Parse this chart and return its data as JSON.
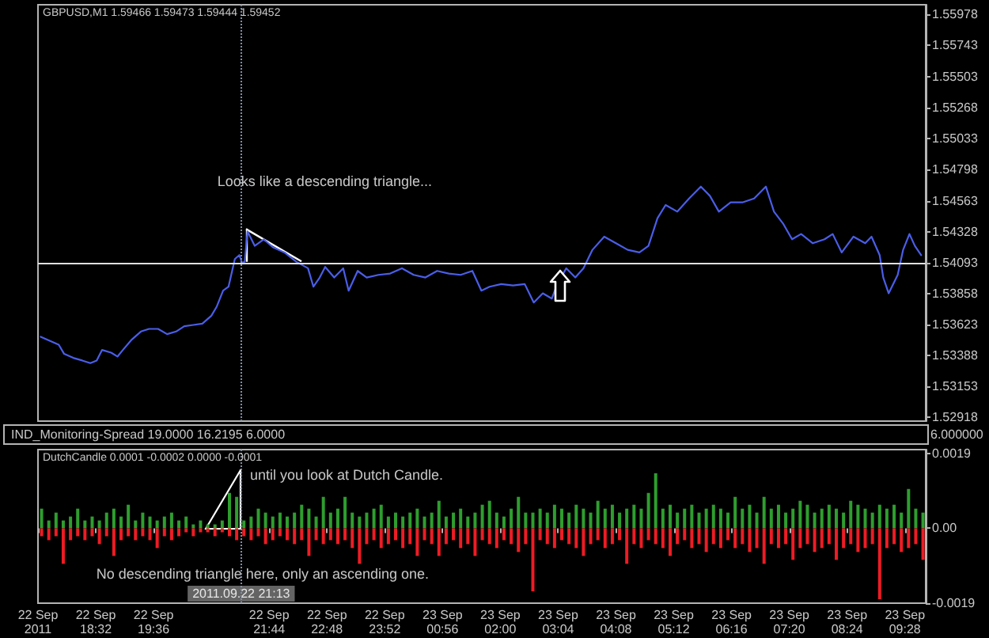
{
  "chart_data": [
    {
      "type": "line",
      "title": "GBPUSD,M1 1.59466 1.59473 1.59444 1.59452",
      "x": [
        "2011-09-22T17:31",
        "2011-09-22T17:41",
        "2011-09-22T17:51",
        "2011-09-22T17:57",
        "2011-09-22T18:07",
        "2011-09-22T18:17",
        "2011-09-22T18:26",
        "2011-09-22T18:33",
        "2011-09-22T18:39",
        "2011-09-22T18:49",
        "2011-09-22T18:56",
        "2011-09-22T19:02",
        "2011-09-22T19:12",
        "2011-09-22T19:22",
        "2011-09-22T19:31",
        "2011-09-22T19:41",
        "2011-09-22T19:51",
        "2011-09-22T20:01",
        "2011-09-22T20:10",
        "2011-09-22T20:20",
        "2011-09-22T20:30",
        "2011-09-22T20:40",
        "2011-09-22T20:46",
        "2011-09-22T20:53",
        "2011-09-22T20:59",
        "2011-09-22T21:06",
        "2011-09-22T21:11",
        "2011-09-22T21:14",
        "2011-09-22T21:17",
        "2011-09-22T21:20",
        "2011-09-22T21:28",
        "2011-09-22T21:38",
        "2011-09-22T21:48",
        "2011-09-22T22:01",
        "2011-09-22T22:14",
        "2011-09-22T22:27",
        "2011-09-22T22:33",
        "2011-09-22T22:40",
        "2011-09-22T22:46",
        "2011-09-22T22:56",
        "2011-09-22T23:06",
        "2011-09-22T23:12",
        "2011-09-22T23:22",
        "2011-09-22T23:32",
        "2011-09-22T23:45",
        "2011-09-22T23:58",
        "2011-09-23T00:11",
        "2011-09-23T00:24",
        "2011-09-23T00:37",
        "2011-09-23T00:50",
        "2011-09-23T01:03",
        "2011-09-23T01:16",
        "2011-09-23T01:29",
        "2011-09-23T01:39",
        "2011-09-23T01:48",
        "2011-09-23T02:01",
        "2011-09-23T02:14",
        "2011-09-23T02:27",
        "2011-09-23T02:37",
        "2011-09-23T02:47",
        "2011-09-23T02:57",
        "2011-09-23T03:03",
        "2011-09-23T03:13",
        "2011-09-23T03:23",
        "2011-09-23T03:32",
        "2011-09-23T03:42",
        "2011-09-23T03:55",
        "2011-09-23T04:08",
        "2011-09-23T04:21",
        "2011-09-23T04:34",
        "2011-09-23T04:44",
        "2011-09-23T04:54",
        "2011-09-23T05:03",
        "2011-09-23T05:16",
        "2011-09-23T05:29",
        "2011-09-23T05:42",
        "2011-09-23T05:52",
        "2011-09-23T06:02",
        "2011-09-23T06:15",
        "2011-09-23T06:28",
        "2011-09-23T06:41",
        "2011-09-23T06:54",
        "2011-09-23T07:03",
        "2011-09-23T07:13",
        "2011-09-23T07:23",
        "2011-09-23T07:33",
        "2011-09-23T07:46",
        "2011-09-23T07:59",
        "2011-09-23T08:08",
        "2011-09-23T08:18",
        "2011-09-23T08:31",
        "2011-09-23T08:44",
        "2011-09-23T08:51",
        "2011-09-23T09:00",
        "2011-09-23T09:04",
        "2011-09-23T09:10",
        "2011-09-23T09:20",
        "2011-09-23T09:26",
        "2011-09-23T09:33",
        "2011-09-23T09:39",
        "2011-09-23T09:46"
      ],
      "values": [
        1.5353,
        1.535,
        1.5347,
        1.534,
        1.5337,
        1.5335,
        1.5333,
        1.5335,
        1.5343,
        1.5341,
        1.5338,
        1.5343,
        1.5351,
        1.5357,
        1.5359,
        1.5359,
        1.5355,
        1.5357,
        1.5361,
        1.5362,
        1.5363,
        1.5369,
        1.5376,
        1.5388,
        1.5391,
        1.5412,
        1.5415,
        1.5409,
        1.541,
        1.5433,
        1.5422,
        1.5427,
        1.5421,
        1.5417,
        1.541,
        1.5405,
        1.5391,
        1.5398,
        1.5406,
        1.5398,
        1.5405,
        1.5388,
        1.5403,
        1.5398,
        1.54,
        1.5401,
        1.5405,
        1.54,
        1.5398,
        1.5403,
        1.5401,
        1.54,
        1.5403,
        1.5388,
        1.5391,
        1.5393,
        1.5392,
        1.5393,
        1.5379,
        1.5386,
        1.5382,
        1.5393,
        1.5405,
        1.5398,
        1.5405,
        1.5419,
        1.5429,
        1.5424,
        1.5419,
        1.5417,
        1.5422,
        1.5443,
        1.5453,
        1.5448,
        1.5458,
        1.5467,
        1.546,
        1.5448,
        1.5455,
        1.5455,
        1.5458,
        1.5467,
        1.5448,
        1.5439,
        1.5427,
        1.5431,
        1.5424,
        1.5427,
        1.5431,
        1.5417,
        1.5429,
        1.5424,
        1.5429,
        1.5415,
        1.5398,
        1.5386,
        1.54,
        1.5419,
        1.5431,
        1.5422,
        1.5415
      ],
      "color": "#4a5ee8",
      "xlim": [
        "2011-09-22T17:28",
        "2011-09-23T09:51"
      ],
      "ylim": [
        1.5289,
        1.5605
      ],
      "yticks": [
        1.52918,
        1.53153,
        1.53388,
        1.53623,
        1.53858,
        1.54093,
        1.54328,
        1.54563,
        1.54798,
        1.55033,
        1.55268,
        1.55503,
        1.55743,
        1.55978
      ],
      "tick_labels": "y",
      "ref_lines": [
        {
          "axis": "y",
          "value": 1.5409,
          "color": "#e0e0e0"
        },
        {
          "axis": "x",
          "value": "2011-09-22T21:13",
          "color": "#7f8fa6",
          "line_style": "dotted"
        }
      ],
      "annotations": [
        "Looks like a descending triangle..."
      ]
    },
    {
      "type": "other",
      "title": "IND_Monitoring-Spread 19.0000 16.2195 6.0000",
      "annotations": [
        "6.000000"
      ]
    },
    {
      "type": "bar",
      "title": "DutchCandle 0.0001 -0.0002 0.0000 -0.0001",
      "x": [
        "2011-09-22T17:32",
        "2011-09-22T17:40",
        "2011-09-22T17:48",
        "2011-09-22T17:56",
        "2011-09-22T18:04",
        "2011-09-22T18:12",
        "2011-09-22T18:20",
        "2011-09-22T18:28",
        "2011-09-22T18:36",
        "2011-09-22T18:44",
        "2011-09-22T18:52",
        "2011-09-22T19:00",
        "2011-09-22T19:08",
        "2011-09-22T19:16",
        "2011-09-22T19:24",
        "2011-09-22T19:32",
        "2011-09-22T19:40",
        "2011-09-22T19:48",
        "2011-09-22T19:56",
        "2011-09-22T20:04",
        "2011-09-22T20:12",
        "2011-09-22T20:20",
        "2011-09-22T20:28",
        "2011-09-22T20:36",
        "2011-09-22T20:44",
        "2011-09-22T20:52",
        "2011-09-22T21:00",
        "2011-09-22T21:08",
        "2011-09-22T21:16",
        "2011-09-22T21:24",
        "2011-09-22T21:32",
        "2011-09-22T21:40",
        "2011-09-22T21:48",
        "2011-09-22T21:56",
        "2011-09-22T22:04",
        "2011-09-22T22:12",
        "2011-09-22T22:20",
        "2011-09-22T22:28",
        "2011-09-22T22:36",
        "2011-09-22T22:44",
        "2011-09-22T22:52",
        "2011-09-22T23:00",
        "2011-09-22T23:08",
        "2011-09-22T23:16",
        "2011-09-22T23:24",
        "2011-09-22T23:32",
        "2011-09-22T23:40",
        "2011-09-22T23:48",
        "2011-09-22T23:56",
        "2011-09-23T00:04",
        "2011-09-23T00:12",
        "2011-09-23T00:20",
        "2011-09-23T00:28",
        "2011-09-23T00:36",
        "2011-09-23T00:44",
        "2011-09-23T00:52",
        "2011-09-23T01:00",
        "2011-09-23T01:08",
        "2011-09-23T01:16",
        "2011-09-23T01:24",
        "2011-09-23T01:32",
        "2011-09-23T01:40",
        "2011-09-23T01:48",
        "2011-09-23T01:56",
        "2011-09-23T02:04",
        "2011-09-23T02:12",
        "2011-09-23T02:20",
        "2011-09-23T02:28",
        "2011-09-23T02:36",
        "2011-09-23T02:44",
        "2011-09-23T02:52",
        "2011-09-23T03:00",
        "2011-09-23T03:08",
        "2011-09-23T03:16",
        "2011-09-23T03:24",
        "2011-09-23T03:32",
        "2011-09-23T03:40",
        "2011-09-23T03:48",
        "2011-09-23T03:56",
        "2011-09-23T04:04",
        "2011-09-23T04:12",
        "2011-09-23T04:20",
        "2011-09-23T04:28",
        "2011-09-23T04:36",
        "2011-09-23T04:44",
        "2011-09-23T04:52",
        "2011-09-23T05:00",
        "2011-09-23T05:08",
        "2011-09-23T05:16",
        "2011-09-23T05:24",
        "2011-09-23T05:32",
        "2011-09-23T05:40",
        "2011-09-23T05:48",
        "2011-09-23T05:56",
        "2011-09-23T06:04",
        "2011-09-23T06:12",
        "2011-09-23T06:20",
        "2011-09-23T06:28",
        "2011-09-23T06:36",
        "2011-09-23T06:44",
        "2011-09-23T06:52",
        "2011-09-23T07:00",
        "2011-09-23T07:08",
        "2011-09-23T07:16",
        "2011-09-23T07:24",
        "2011-09-23T07:32",
        "2011-09-23T07:40",
        "2011-09-23T07:48",
        "2011-09-23T07:56",
        "2011-09-23T08:04",
        "2011-09-23T08:12",
        "2011-09-23T08:20",
        "2011-09-23T08:28",
        "2011-09-23T08:36",
        "2011-09-23T08:44",
        "2011-09-23T08:52",
        "2011-09-23T09:00",
        "2011-09-23T09:08",
        "2011-09-23T09:16",
        "2011-09-23T09:24",
        "2011-09-23T09:32",
        "2011-09-23T09:40",
        "2011-09-23T09:48"
      ],
      "series": [
        {
          "color": "#2e9e2e",
          "values": [
            0.0005,
            0.0002,
            0.0004,
            0.0002,
            0.0003,
            0.0005,
            0.0002,
            0.0003,
            0.0002,
            0.0004,
            0.0005,
            0.0003,
            0.0006,
            0.0002,
            0.0004,
            0.0003,
            0.0002,
            0.0003,
            0.0004,
            0.0002,
            0.0003,
            0.0001,
            0.0002,
            0.0001,
            0.0001,
            0.0002,
            0.0009,
            0.0008,
            0.0002,
            0.0003,
            0.0005,
            0.0004,
            0.0003,
            0.0004,
            0.0003,
            0.0004,
            0.0006,
            0.0005,
            0.0003,
            0.0008,
            0.0004,
            0.0005,
            0.0008,
            0.0004,
            0.0003,
            0.0004,
            0.0005,
            0.0006,
            0.0003,
            0.0004,
            0.0003,
            0.0004,
            0.0005,
            0.0003,
            0.0004,
            0.0007,
            0.0003,
            0.0004,
            0.0005,
            0.0003,
            0.0004,
            0.0006,
            0.0007,
            0.0004,
            0.0003,
            0.0005,
            0.0008,
            0.0004,
            0.0004,
            0.0005,
            0.0004,
            0.0006,
            0.0005,
            0.0004,
            0.0006,
            0.0005,
            0.0004,
            0.0007,
            0.0005,
            0.0006,
            0.0004,
            0.0005,
            0.0006,
            0.0005,
            0.0009,
            0.0014,
            0.0005,
            0.0006,
            0.0004,
            0.0005,
            0.0006,
            0.0004,
            0.0005,
            0.0006,
            0.0005,
            0.0004,
            0.0008,
            0.0005,
            0.0006,
            0.0004,
            0.0008,
            0.0005,
            0.0006,
            0.0004,
            0.0005,
            0.0007,
            0.0006,
            0.0004,
            0.0005,
            0.0006,
            0.0005,
            0.0004,
            0.0007,
            0.0006,
            0.0005,
            0.0004,
            0.0006,
            0.0005,
            0.0006,
            0.0004,
            0.001,
            0.0005,
            0.0004
          ]
        },
        {
          "color": "#ee1c24",
          "values": [
            -0.0002,
            -0.0003,
            -0.0002,
            -0.0009,
            -0.0003,
            -0.0002,
            -0.0003,
            -0.0002,
            -0.0004,
            -0.0002,
            -0.0007,
            -0.0003,
            -0.0002,
            -0.0003,
            -0.0002,
            -0.0003,
            -0.0005,
            -0.0002,
            -0.0003,
            -0.0002,
            -0.0001,
            -0.0002,
            -0.0001,
            -0.0001,
            -0.0002,
            -0.0001,
            -0.0002,
            -0.0003,
            -0.0002,
            -0.0003,
            -0.0002,
            -0.0004,
            -0.0003,
            -0.0002,
            -0.0003,
            -0.0004,
            -0.0003,
            -0.0007,
            -0.0003,
            -0.0004,
            -0.0003,
            -0.0004,
            -0.0003,
            -0.0005,
            -0.0009,
            -0.0004,
            -0.0003,
            -0.0005,
            -0.0004,
            -0.0003,
            -0.0005,
            -0.0004,
            -0.0007,
            -0.0003,
            -0.0004,
            -0.0007,
            -0.0004,
            -0.0003,
            -0.0005,
            -0.0004,
            -0.0007,
            -0.0003,
            -0.0004,
            -0.0005,
            -0.0003,
            -0.0004,
            -0.0006,
            -0.0004,
            -0.0016,
            -0.0003,
            -0.0004,
            -0.0005,
            -0.0003,
            -0.0004,
            -0.0005,
            -0.0007,
            -0.0004,
            -0.0003,
            -0.0005,
            -0.0004,
            -0.0003,
            -0.0009,
            -0.0004,
            -0.0005,
            -0.0003,
            -0.0004,
            -0.0005,
            -0.0007,
            -0.0004,
            -0.0003,
            -0.0005,
            -0.0004,
            -0.0006,
            -0.0004,
            -0.0005,
            -0.0003,
            -0.0005,
            -0.0004,
            -0.0006,
            -0.0005,
            -0.0009,
            -0.0004,
            -0.0005,
            -0.0004,
            -0.0008,
            -0.0005,
            -0.0004,
            -0.0006,
            -0.0005,
            -0.0004,
            -0.0008,
            -0.0005,
            -0.0004,
            -0.0006,
            -0.0005,
            -0.0004,
            -0.0018,
            -0.0005,
            -0.0004,
            -0.0006,
            -0.0005,
            -0.0004,
            -0.0008
          ]
        }
      ],
      "stacked": true,
      "xlim": [
        "2011-09-22T17:28",
        "2011-09-23T09:51"
      ],
      "xticks": [
        {
          "value": "2011-09-22T17:28",
          "label": "22 Sep 2011"
        },
        {
          "value": "2011-09-22T18:32",
          "label": "22 Sep 18:32"
        },
        {
          "value": "2011-09-22T19:36",
          "label": "22 Sep 19:36"
        },
        {
          "value": "2011-09-22T21:44",
          "label": "22 Sep 21:44"
        },
        {
          "value": "2011-09-22T22:48",
          "label": "22 Sep 22:48"
        },
        {
          "value": "2011-09-22T23:52",
          "label": "22 Sep 23:52"
        },
        {
          "value": "2011-09-23T00:56",
          "label": "23 Sep 00:56"
        },
        {
          "value": "2011-09-23T02:00",
          "label": "23 Sep 02:00"
        },
        {
          "value": "2011-09-23T03:04",
          "label": "23 Sep 03:04"
        },
        {
          "value": "2011-09-23T04:08",
          "label": "23 Sep 04:08"
        },
        {
          "value": "2011-09-23T05:12",
          "label": "23 Sep 05:12"
        },
        {
          "value": "2011-09-23T06:16",
          "label": "23 Sep 06:16"
        },
        {
          "value": "2011-09-23T07:20",
          "label": "23 Sep 07:20"
        },
        {
          "value": "2011-09-23T08:24",
          "label": "23 Sep 08:24"
        },
        {
          "value": "2011-09-23T09:28",
          "label": "23 Sep 09:28"
        }
      ],
      "ylim": [
        -0.0019,
        0.002
      ],
      "yticks": [
        -0.0019,
        {
          "value": 0,
          "label": "0.00"
        },
        0.0019
      ],
      "ref_lines": [
        {
          "axis": "x",
          "value": "2011-09-22T21:13",
          "label": "2011.09.22 21:13",
          "color": "#7f8fa6",
          "line_style": "dotted"
        }
      ],
      "annotations": [
        "until you look at Dutch Candle.",
        "No descending triangle here, only an ascending one."
      ]
    }
  ]
}
